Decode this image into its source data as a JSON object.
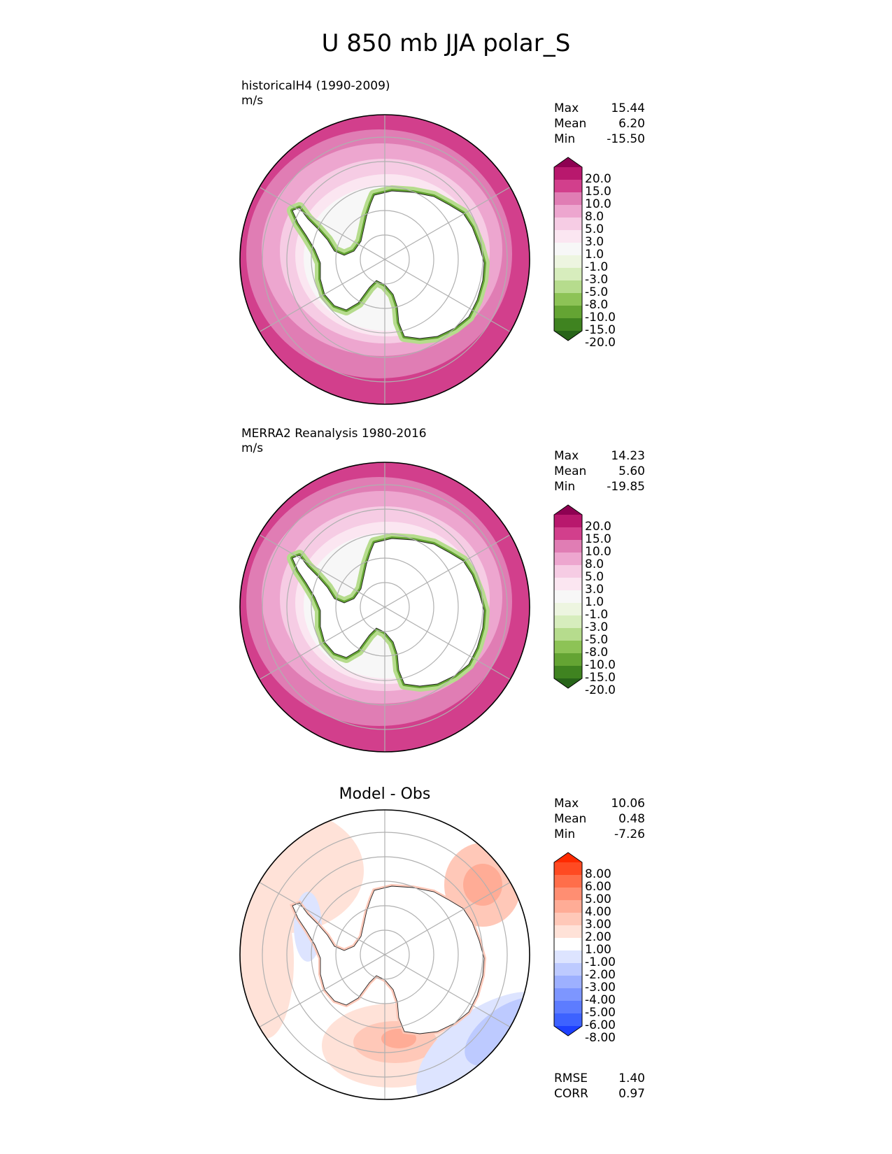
{
  "title": "U 850 mb JJA polar_S",
  "panels": [
    {
      "id": "model",
      "title": "historicalH4 (1990-2009)",
      "units": "m/s",
      "stats": {
        "max_label": "Max",
        "max": "15.44",
        "mean_label": "Mean",
        "mean": "6.20",
        "min_label": "Min",
        "min": "-15.50"
      },
      "colorbar": {
        "labels": [
          "20.0",
          "15.0",
          "10.0",
          "8.0",
          "5.0",
          "3.0",
          "1.0",
          "-1.0",
          "-3.0",
          "-5.0",
          "-8.0",
          "-10.0",
          "-15.0",
          "-20.0"
        ],
        "colors": [
          "#8e0152",
          "#b8186d",
          "#d23f8c",
          "#e07db4",
          "#eda6cf",
          "#f6cce4",
          "#fbe6f1",
          "#f7f7f7",
          "#edf5e0",
          "#d7edbd",
          "#b6dc8d",
          "#8dc356",
          "#64a433",
          "#3f8320",
          "#276419"
        ]
      }
    },
    {
      "id": "obs",
      "title": "MERRA2 Reanalysis 1980-2016",
      "units": "m/s",
      "stats": {
        "max_label": "Max",
        "max": "14.23",
        "mean_label": "Mean",
        "mean": "5.60",
        "min_label": "Min",
        "min": "-19.85"
      },
      "colorbar": {
        "labels": [
          "20.0",
          "15.0",
          "10.0",
          "8.0",
          "5.0",
          "3.0",
          "1.0",
          "-1.0",
          "-3.0",
          "-5.0",
          "-8.0",
          "-10.0",
          "-15.0",
          "-20.0"
        ],
        "colors": [
          "#8e0152",
          "#b8186d",
          "#d23f8c",
          "#e07db4",
          "#eda6cf",
          "#f6cce4",
          "#fbe6f1",
          "#f7f7f7",
          "#edf5e0",
          "#d7edbd",
          "#b6dc8d",
          "#8dc356",
          "#64a433",
          "#3f8320",
          "#276419"
        ]
      }
    },
    {
      "id": "diff",
      "title": "Model - Obs",
      "stats": {
        "max_label": "Max",
        "max": "10.06",
        "mean_label": "Mean",
        "mean": "0.48",
        "min_label": "Min",
        "min": "-7.26"
      },
      "colorbar": {
        "labels": [
          "8.00",
          "6.00",
          "5.00",
          "4.00",
          "3.00",
          "2.00",
          "1.00",
          "-1.00",
          "-2.00",
          "-3.00",
          "-4.00",
          "-5.00",
          "-6.00",
          "-8.00"
        ],
        "colors": [
          "#ff2a00",
          "#ff4a22",
          "#ff6e4a",
          "#ff8e72",
          "#ffac96",
          "#ffc8b8",
          "#ffe2d8",
          "#ffffff",
          "#dde4ff",
          "#bdcaff",
          "#9db0ff",
          "#7d96ff",
          "#5d7cff",
          "#3d62ff",
          "#1d40ff"
        ]
      },
      "error_stats": {
        "rmse_label": "RMSE",
        "rmse": "1.40",
        "corr_label": "CORR",
        "corr": "0.97"
      }
    }
  ],
  "chart_data": [
    {
      "type": "heatmap",
      "projection": "south-polar-stereographic",
      "title": "historicalH4 (1990-2009)",
      "units": "m/s",
      "max": 15.44,
      "mean": 6.2,
      "min": -15.5,
      "levels": [
        -20,
        -15,
        -10,
        -8,
        -5,
        -3,
        -1,
        1,
        3,
        5,
        8,
        10,
        15,
        20
      ]
    },
    {
      "type": "heatmap",
      "projection": "south-polar-stereographic",
      "title": "MERRA2 Reanalysis 1980-2016",
      "units": "m/s",
      "max": 14.23,
      "mean": 5.6,
      "min": -19.85,
      "levels": [
        -20,
        -15,
        -10,
        -8,
        -5,
        -3,
        -1,
        1,
        3,
        5,
        8,
        10,
        15,
        20
      ]
    },
    {
      "type": "heatmap",
      "projection": "south-polar-stereographic",
      "title": "Model - Obs",
      "max": 10.06,
      "mean": 0.48,
      "min": -7.26,
      "rmse": 1.4,
      "corr": 0.97,
      "levels": [
        -8,
        -6,
        -5,
        -4,
        -3,
        -2,
        -1,
        1,
        2,
        3,
        4,
        5,
        6,
        8
      ]
    }
  ]
}
